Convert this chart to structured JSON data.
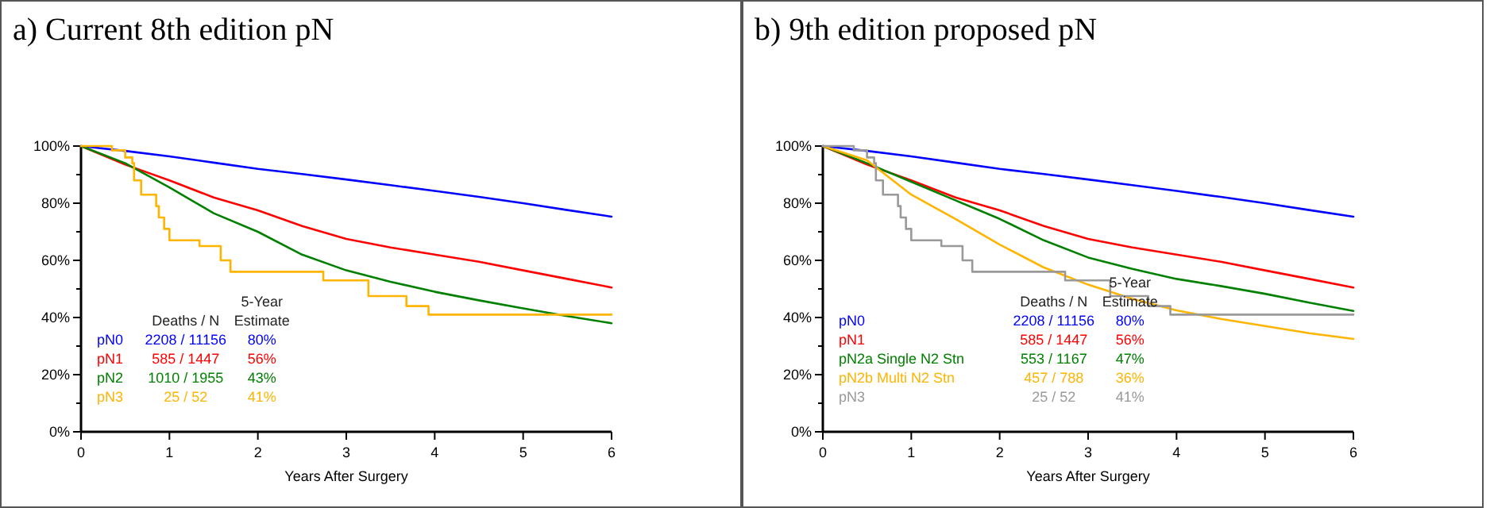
{
  "chart_data": [
    {
      "type": "line",
      "title": "a) Current 8th edition pN",
      "xlabel": "Years After Surgery",
      "xlim": [
        0,
        6
      ],
      "xticks": [
        0,
        1,
        2,
        3,
        4,
        5,
        6
      ],
      "ylim": [
        0,
        100
      ],
      "yticks": [
        {
          "value": 0,
          "label": "0%"
        },
        {
          "value": 10,
          "label": null
        },
        {
          "value": 20,
          "label": "20%"
        },
        {
          "value": 30,
          "label": null
        },
        {
          "value": 40,
          "label": "40%"
        },
        {
          "value": 50,
          "label": null
        },
        {
          "value": 60,
          "label": "60%"
        },
        {
          "value": 70,
          "label": null
        },
        {
          "value": 80,
          "label": "80%"
        },
        {
          "value": 90,
          "label": null
        },
        {
          "value": 100,
          "label": "100%"
        }
      ],
      "legend": "bottom left",
      "marker": "none",
      "annotations": [
        "Deaths / N",
        "5-Year Estimate",
        "2208 / 11156",
        "80%",
        "585 / 1447",
        "56%",
        "1010 / 1955",
        "43%",
        "25 / 52",
        "41%"
      ],
      "series": [
        {
          "name": "pN0",
          "color": "#0000ff",
          "x": [
            0,
            0.5,
            1,
            1.5,
            2,
            2.5,
            3,
            3.5,
            4,
            4.5,
            5,
            5.5,
            6
          ],
          "values": [
            100,
            98.3,
            96.4,
            94.2,
            92,
            90.2,
            88.3,
            86.3,
            84.3,
            82.2,
            80,
            77.6,
            75.3
          ]
        },
        {
          "name": "pN1",
          "color": "#ff0000",
          "x": [
            0,
            0.5,
            1,
            1.5,
            2,
            2.5,
            3,
            3.5,
            4,
            4.5,
            5,
            5.5,
            6
          ],
          "values": [
            100,
            93.5,
            88,
            82,
            77.5,
            72,
            67.5,
            64.5,
            62,
            59.5,
            56.5,
            53.5,
            50.5
          ]
        },
        {
          "name": "pN2",
          "color": "#008000",
          "x": [
            0,
            0.5,
            1,
            1.5,
            2,
            2.5,
            3,
            3.5,
            4,
            4.5,
            5,
            5.5,
            6
          ],
          "values": [
            100,
            94,
            85.5,
            76.5,
            70,
            62,
            56.5,
            52.5,
            49,
            46,
            43.2,
            40.5,
            38
          ]
        },
        {
          "name": "pN3",
          "color": "#ffb400",
          "type": "step",
          "x": [
            0,
            0.35,
            0.5,
            0.58,
            0.6,
            0.68,
            0.85,
            0.88,
            0.94,
            1.0,
            1.34,
            1.58,
            1.69,
            2.74,
            3.25,
            3.68,
            3.93,
            6
          ],
          "values": [
            100,
            98.5,
            96,
            94,
            88,
            83,
            79,
            75,
            71,
            67,
            65,
            60,
            56,
            53,
            47.5,
            44,
            41,
            41
          ]
        }
      ]
    },
    {
      "type": "line",
      "title": "b) 9th edition proposed pN",
      "xlabel": "Years After Surgery",
      "xlim": [
        0,
        6
      ],
      "xticks": [
        0,
        1,
        2,
        3,
        4,
        5,
        6
      ],
      "ylim": [
        0,
        100
      ],
      "yticks": [
        {
          "value": 0,
          "label": "0%"
        },
        {
          "value": 10,
          "label": null
        },
        {
          "value": 20,
          "label": "20%"
        },
        {
          "value": 30,
          "label": null
        },
        {
          "value": 40,
          "label": "40%"
        },
        {
          "value": 50,
          "label": null
        },
        {
          "value": 60,
          "label": "60%"
        },
        {
          "value": 70,
          "label": null
        },
        {
          "value": 80,
          "label": "80%"
        },
        {
          "value": 90,
          "label": null
        },
        {
          "value": 100,
          "label": "100%"
        }
      ],
      "legend": "bottom left",
      "marker": "none",
      "annotations": [
        "Deaths / N",
        "5-Year Estimate",
        "2208 / 11156",
        "80%",
        "585 / 1447",
        "56%",
        "553 / 1167",
        "47%",
        "457 / 788",
        "36%",
        "25 / 52",
        "41%"
      ],
      "series": [
        {
          "name": "pN0",
          "color": "#0000ff",
          "x": [
            0,
            0.5,
            1,
            1.5,
            2,
            2.5,
            3,
            3.5,
            4,
            4.5,
            5,
            5.5,
            6
          ],
          "values": [
            100,
            98.3,
            96.4,
            94.2,
            92,
            90.2,
            88.3,
            86.3,
            84.3,
            82.2,
            80,
            77.6,
            75.3
          ]
        },
        {
          "name": "pN1",
          "color": "#ff0000",
          "x": [
            0,
            0.5,
            1,
            1.5,
            2,
            2.5,
            3,
            3.5,
            4,
            4.5,
            5,
            5.5,
            6
          ],
          "values": [
            100,
            93.5,
            88,
            82,
            77.5,
            72,
            67.5,
            64.5,
            62,
            59.5,
            56.5,
            53.5,
            50.5
          ]
        },
        {
          "name": "pN2a Single N2 Stn",
          "color": "#008000",
          "x": [
            0,
            0.5,
            1,
            1.5,
            2,
            2.5,
            3,
            3.5,
            4,
            4.5,
            5,
            5.5,
            6
          ],
          "values": [
            100,
            94,
            87.5,
            81,
            74.5,
            67,
            61,
            57,
            53.5,
            51,
            48.3,
            45.2,
            42.3
          ]
        },
        {
          "name": "pN2b Multi N2 Stn",
          "color": "#ffb400",
          "x": [
            0,
            0.5,
            1,
            1.5,
            2,
            2.5,
            3,
            3.5,
            4,
            4.5,
            5,
            5.5,
            6
          ],
          "values": [
            100,
            95,
            83,
            74.5,
            65.5,
            57.5,
            51.5,
            46.5,
            42.5,
            39.5,
            37,
            34.5,
            32.5
          ]
        },
        {
          "name": "pN3",
          "color": "#999999",
          "type": "step",
          "x": [
            0,
            0.35,
            0.5,
            0.58,
            0.6,
            0.68,
            0.85,
            0.88,
            0.94,
            1.0,
            1.34,
            1.58,
            1.69,
            2.74,
            3.25,
            3.68,
            3.93,
            6
          ],
          "values": [
            100,
            98.5,
            96,
            94,
            88,
            83,
            79,
            75,
            71,
            67,
            65,
            60,
            56,
            53,
            47.5,
            44,
            41,
            41
          ]
        }
      ]
    }
  ]
}
